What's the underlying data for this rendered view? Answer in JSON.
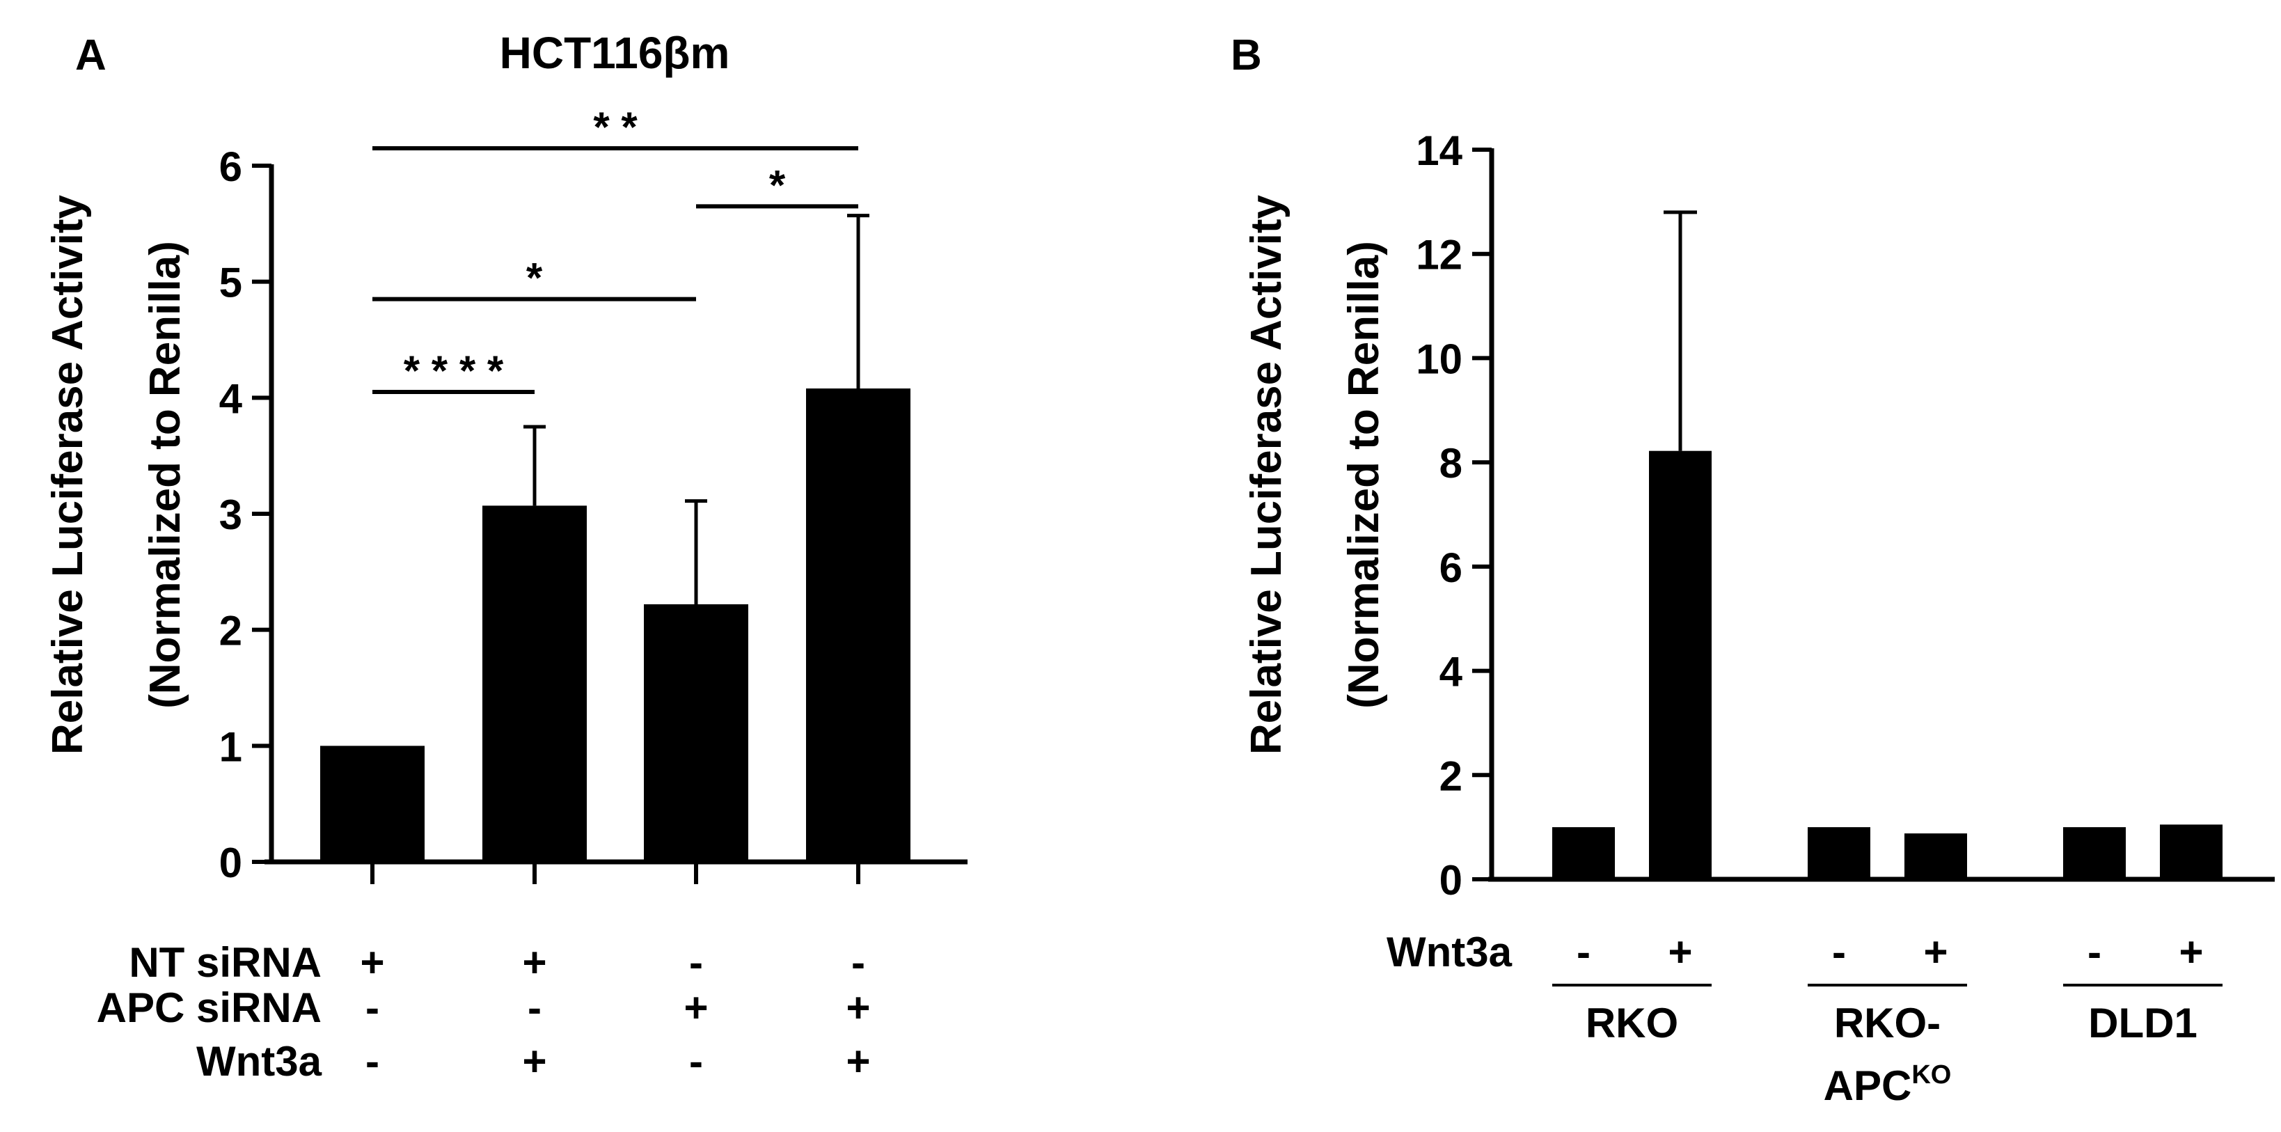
{
  "chart_data": [
    {
      "panel": "A",
      "type": "bar",
      "title": "HCT116βm",
      "ylabel_line1": "Relative Luciferase Activity",
      "ylabel_line2": "(Normalized to Renilla)",
      "ylim": [
        0,
        6
      ],
      "yticks": [
        "0",
        "1",
        "2",
        "3",
        "4",
        "5",
        "6"
      ],
      "values": [
        1.0,
        3.07,
        2.22,
        4.08
      ],
      "errors": [
        0.0,
        0.68,
        0.89,
        1.49
      ],
      "conditions": [
        {
          "name": "NT siRNA",
          "marks": [
            "+",
            "+",
            "-",
            "-"
          ]
        },
        {
          "name": "APC siRNA",
          "marks": [
            "-",
            "-",
            "+",
            "+"
          ]
        },
        {
          "name": "Wnt3a",
          "marks": [
            "-",
            "+",
            "-",
            "+"
          ]
        }
      ],
      "significance": [
        {
          "from": 0,
          "to": 1,
          "y": 4.05,
          "label": "* * * *"
        },
        {
          "from": 0,
          "to": 2,
          "y": 4.85,
          "label": "*"
        },
        {
          "from": 2,
          "to": 3,
          "y": 5.65,
          "label": "*"
        },
        {
          "from": 0,
          "to": 3,
          "y": 6.15,
          "label": "* *"
        }
      ]
    },
    {
      "panel": "B",
      "type": "bar",
      "ylabel_line1": "Relative Luciferase Activity",
      "ylabel_line2": "(Normalized to Renilla)",
      "ylim": [
        0,
        14
      ],
      "yticks": [
        "0",
        "2",
        "4",
        "6",
        "8",
        "10",
        "12",
        "14"
      ],
      "values": [
        1.0,
        8.22,
        1.0,
        0.88,
        1.0,
        1.05
      ],
      "errors": [
        0.0,
        4.58,
        0.0,
        0.0,
        0.0,
        0.0
      ],
      "treatment_label": "Wnt3a",
      "treatment_marks": [
        "-",
        "+",
        "-",
        "+",
        "-",
        "+"
      ],
      "groups": [
        {
          "line1": "RKO",
          "base": "",
          "sup": ""
        },
        {
          "line1": "RKO-",
          "base": "APC",
          "sup": "KO"
        },
        {
          "line1": "DLD1",
          "base": "",
          "sup": ""
        }
      ]
    }
  ],
  "panel_labels": {
    "a": "A",
    "b": "B"
  }
}
